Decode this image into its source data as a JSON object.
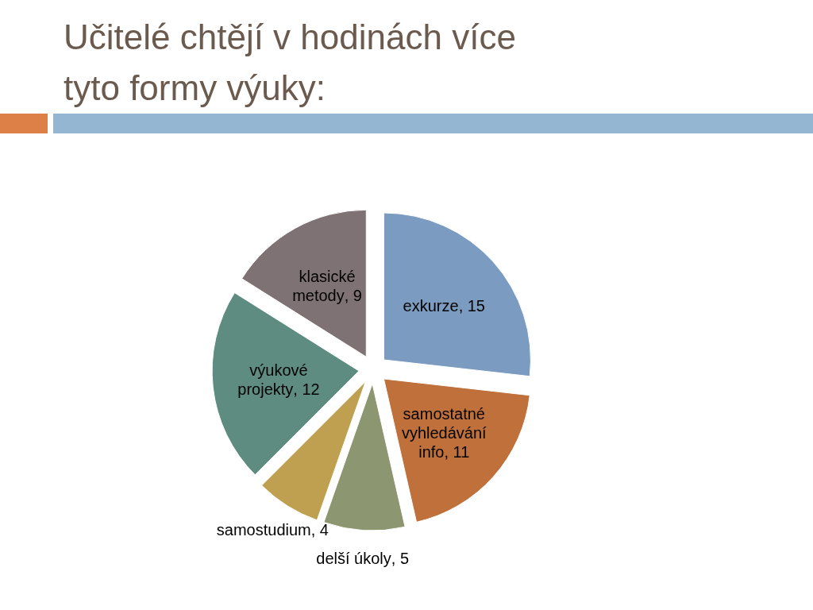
{
  "chart_data": {
    "type": "pie",
    "title": "Učitelé chtějí v hodinách více tyto formy výuky:",
    "categories": [
      "exkurze",
      "samostatné vyhledávání info",
      "delší úkoly",
      "samostudium",
      "výukové projekty",
      "klasické metody"
    ],
    "values": [
      15,
      11,
      5,
      4,
      12,
      9
    ],
    "colors": [
      "#7b9cc0",
      "#c0703a",
      "#8c9670",
      "#bfa050",
      "#5e8c80",
      "#7f7275"
    ],
    "value_labels": [
      ", 15",
      ", 11",
      ", 5",
      ", 4",
      ", 12",
      ", 9"
    ]
  }
}
